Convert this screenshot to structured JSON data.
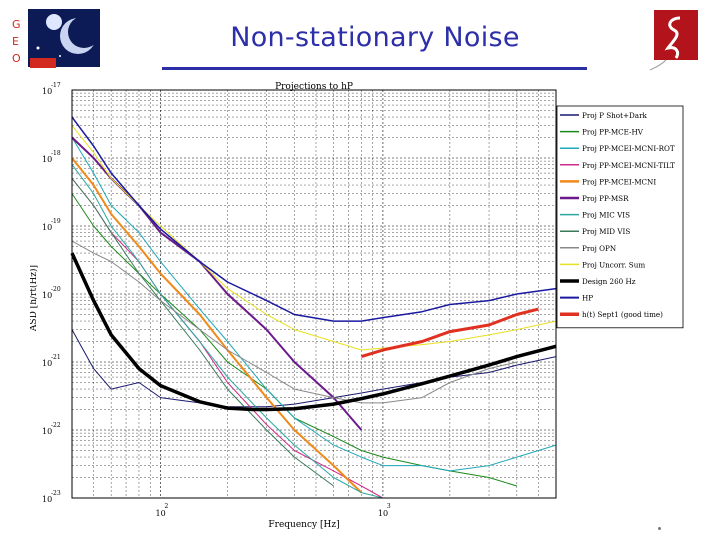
{
  "slide": {
    "title": "Non-stationary Noise"
  },
  "logo": {
    "letters": [
      "G",
      "E",
      "O"
    ],
    "accent": "#d22a1e",
    "navy": "#0c1a55",
    "right_logo_color": "#b3131a"
  },
  "chart_data": {
    "type": "line",
    "title": "Projections to hP",
    "xlabel": "Frequency [Hz]",
    "ylabel": "ASD [h/rt(Hz)]",
    "x_scale": "log",
    "y_scale": "log",
    "xlim": [
      40,
      6000
    ],
    "ylim": [
      1e-23,
      1e-17
    ],
    "x_ticks": [
      {
        "value": 100,
        "base": "10",
        "exp": "2"
      },
      {
        "value": 1000,
        "base": "10",
        "exp": "3"
      }
    ],
    "y_ticks": [
      {
        "value": 1e-17,
        "base": "10",
        "exp": "-17"
      },
      {
        "value": 1e-18,
        "base": "10",
        "exp": "-18"
      },
      {
        "value": 1e-19,
        "base": "10",
        "exp": "-19"
      },
      {
        "value": 1e-20,
        "base": "10",
        "exp": "-20"
      },
      {
        "value": 1e-21,
        "base": "10",
        "exp": "-21"
      },
      {
        "value": 1e-22,
        "base": "10",
        "exp": "-22"
      },
      {
        "value": 1e-23,
        "base": "10",
        "exp": "-23"
      }
    ],
    "grid": true,
    "legend_position": "right",
    "series": [
      {
        "name": "Proj P Shot+Dark",
        "color": "#1a1a6e",
        "width": 1,
        "x": [
          40,
          50,
          60,
          80,
          100,
          150,
          200,
          300,
          400,
          600,
          800,
          1000,
          1500,
          2000,
          3000,
          4000,
          6000
        ],
        "y": [
          3e-21,
          8e-22,
          4e-22,
          5e-22,
          3e-22,
          2.5e-22,
          2.2e-22,
          2.2e-22,
          2.4e-22,
          3e-22,
          3.5e-22,
          4e-22,
          5e-22,
          6e-22,
          7e-22,
          9e-22,
          1.2e-21
        ]
      },
      {
        "name": "Proj PP-MCE-HV",
        "color": "#1b8a1b",
        "width": 1,
        "x": [
          40,
          50,
          60,
          80,
          100,
          150,
          200,
          300,
          400,
          600,
          800,
          1000,
          1500,
          2000,
          3000,
          4000
        ],
        "y": [
          3e-19,
          1e-19,
          5e-20,
          2e-20,
          1e-20,
          3e-21,
          1e-21,
          4e-22,
          1.5e-22,
          8e-23,
          5e-23,
          4e-23,
          3e-23,
          2.5e-23,
          2e-23,
          1.5e-23
        ]
      },
      {
        "name": "Proj PP-MCEI-MCNI-ROT",
        "color": "#1fa8b8",
        "width": 1,
        "x": [
          40,
          50,
          60,
          80,
          100,
          150,
          200,
          300,
          400,
          600,
          800,
          1000,
          1500,
          2000,
          3000,
          4000,
          6000
        ],
        "y": [
          2e-18,
          6e-19,
          2e-19,
          8e-20,
          3e-20,
          6e-21,
          2e-21,
          4e-22,
          1.5e-22,
          6e-23,
          4e-23,
          3e-23,
          3e-23,
          2.5e-23,
          3e-23,
          4e-23,
          6e-23
        ]
      },
      {
        "name": "Proj PP-MCEI-MCNI-TILT",
        "color": "#d02a8a",
        "width": 1,
        "x": [
          40,
          50,
          60,
          80,
          100,
          150,
          200,
          300,
          400,
          600,
          800,
          1000
        ],
        "y": [
          5e-19,
          2e-19,
          8e-20,
          3e-20,
          1e-20,
          2e-21,
          5e-22,
          1.2e-22,
          5e-23,
          2.5e-23,
          1.5e-23,
          1e-23
        ]
      },
      {
        "name": "Proj PP-MCEI-MCNI",
        "color": "#f08a1a",
        "width": 2,
        "x": [
          40,
          50,
          60,
          80,
          100,
          150,
          200,
          300,
          400,
          600,
          800
        ],
        "y": [
          1e-18,
          4e-19,
          1.5e-19,
          5e-20,
          2e-20,
          5e-21,
          1.5e-21,
          3e-22,
          1e-22,
          3e-23,
          1.2e-23
        ]
      },
      {
        "name": "Proj PP-MSR",
        "color": "#6a1a8a",
        "width": 2,
        "x": [
          40,
          50,
          60,
          80,
          100,
          150,
          200,
          300,
          400,
          600,
          800
        ],
        "y": [
          2e-18,
          1e-18,
          5e-19,
          2e-19,
          8e-20,
          3e-20,
          1e-20,
          3e-21,
          1e-21,
          3e-22,
          1e-22
        ]
      },
      {
        "name": "Proj MIC VIS",
        "color": "#2aa8a0",
        "width": 1,
        "x": [
          40,
          50,
          60,
          80,
          100,
          150,
          200,
          300,
          400,
          600,
          800,
          1000
        ],
        "y": [
          8e-19,
          3e-19,
          1e-19,
          3e-20,
          1e-20,
          2e-21,
          6e-22,
          1.5e-22,
          6e-23,
          2e-23,
          1.2e-23,
          1e-23
        ]
      },
      {
        "name": "Proj MID VIS",
        "color": "#3a7a5a",
        "width": 1,
        "x": [
          40,
          50,
          60,
          80,
          100,
          150,
          200,
          300,
          400,
          600
        ],
        "y": [
          5e-19,
          2e-19,
          8e-20,
          2e-20,
          8e-21,
          1.5e-21,
          4e-22,
          1e-22,
          4e-23,
          1.5e-23
        ]
      },
      {
        "name": "Proj OPN",
        "color": "#888888",
        "width": 1,
        "x": [
          40,
          50,
          60,
          80,
          100,
          150,
          200,
          300,
          400,
          600,
          800,
          1000,
          1500,
          2000,
          3000,
          4000
        ],
        "y": [
          6e-20,
          4e-20,
          3e-20,
          1.5e-20,
          8e-21,
          3e-21,
          1.5e-21,
          7e-22,
          4e-22,
          3e-22,
          2.5e-22,
          2.5e-22,
          3e-22,
          5e-22,
          8e-22,
          1e-21
        ]
      },
      {
        "name": "Proj Uncorr. Sum",
        "color": "#e8e020",
        "width": 1,
        "x": [
          40,
          50,
          60,
          80,
          100,
          150,
          200,
          300,
          400,
          600,
          800,
          1000,
          1500,
          2000,
          3000,
          4000,
          6000
        ],
        "y": [
          3e-18,
          1.2e-18,
          5e-19,
          2e-19,
          1e-19,
          3e-20,
          1.2e-20,
          5e-21,
          3e-21,
          2e-21,
          1.5e-21,
          1.6e-21,
          1.8e-21,
          2e-21,
          2.5e-21,
          3e-21,
          4e-21
        ]
      },
      {
        "name": "Design 260 Hz",
        "color": "#000000",
        "width": 3.5,
        "x": [
          40,
          50,
          60,
          80,
          100,
          150,
          200,
          260,
          300,
          400,
          600,
          800,
          1000,
          1500,
          2000,
          3000,
          4000,
          6000
        ],
        "y": [
          4e-20,
          8e-21,
          2.5e-21,
          8e-22,
          4.5e-22,
          2.6e-22,
          2.1e-22,
          2e-22,
          2e-22,
          2.05e-22,
          2.4e-22,
          2.9e-22,
          3.4e-22,
          4.8e-22,
          6.2e-22,
          9e-22,
          1.2e-21,
          1.7e-21
        ]
      },
      {
        "name": "HP",
        "color": "#1a1aa0",
        "width": 1.5,
        "x": [
          40,
          50,
          60,
          80,
          100,
          150,
          200,
          300,
          400,
          600,
          800,
          1000,
          1500,
          2000,
          3000,
          4000,
          6000
        ],
        "y": [
          4e-18,
          1.5e-18,
          6e-19,
          2e-19,
          9e-20,
          3e-20,
          1.5e-20,
          8e-21,
          5e-21,
          4e-21,
          4e-21,
          4.5e-21,
          5.5e-21,
          7e-21,
          8e-21,
          1e-20,
          1.2e-20
        ]
      },
      {
        "name": "h(t) Sept1 (good time)",
        "color": "#e03020",
        "width": 3,
        "x": [
          800,
          1000,
          1500,
          2000,
          3000,
          4000,
          5000
        ],
        "y": [
          1.2e-21,
          1.5e-21,
          2e-21,
          2.8e-21,
          3.5e-21,
          5e-21,
          6e-21
        ]
      }
    ]
  }
}
